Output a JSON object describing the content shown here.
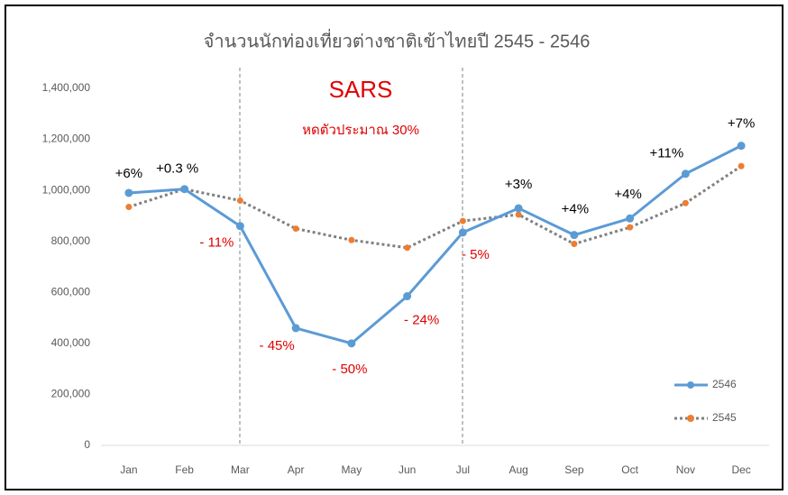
{
  "chart_data": {
    "type": "line",
    "title": "จำนวนนักท่องเที่ยวต่างชาติเข้าไทยปี 2545 - 2546",
    "categories": [
      "Jan",
      "Feb",
      "Mar",
      "Apr",
      "May",
      "Jun",
      "Jul",
      "Aug",
      "Sep",
      "Oct",
      "Nov",
      "Dec"
    ],
    "series": [
      {
        "name": "2546",
        "color": "#5b9bd5",
        "values": [
          990000,
          1005000,
          860000,
          460000,
          400000,
          585000,
          835000,
          930000,
          825000,
          890000,
          1065000,
          1175000
        ]
      },
      {
        "name": "2545",
        "color": "#808080",
        "marker_color": "#ed7d31",
        "values": [
          935000,
          1005000,
          960000,
          850000,
          805000,
          775000,
          880000,
          905000,
          790000,
          855000,
          950000,
          1095000
        ]
      }
    ],
    "annotations": [
      "+6%",
      "+0.3 %",
      "- 11%",
      "- 45%",
      "- 50%",
      "- 24%",
      "- 5%",
      "+3%",
      "+4%",
      "+4%",
      "+11%",
      "+7%"
    ],
    "callout": {
      "title": "SARS",
      "subtitle": "หดตัวประมาณ 30%"
    },
    "ylim": [
      0,
      1400000
    ],
    "yticks": [
      0,
      {
        "value": 200000,
        "label": "200,000"
      },
      {
        "value": 400000,
        "label": "400,000"
      },
      {
        "value": 600000,
        "label": "600,000"
      },
      {
        "value": 800000,
        "label": "800,000"
      },
      {
        "value": 1000000,
        "label": "1,000,000"
      },
      {
        "value": 1200000,
        "label": "1,200,000"
      },
      {
        "value": 1400000,
        "label": "1,400,000"
      }
    ],
    "legend": "bottom-right"
  }
}
